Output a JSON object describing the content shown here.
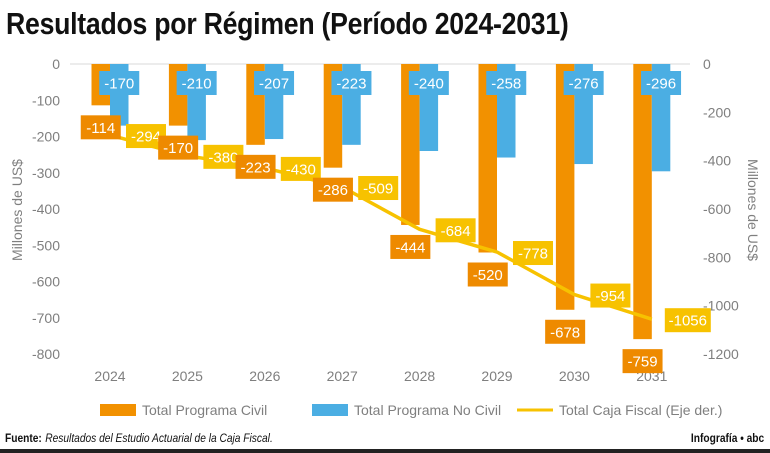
{
  "title": "Resultados por Régimen (Período 2024-2031)",
  "footer": {
    "source_label": "Fuente:",
    "source_text": "Resultados del Estudio Actuarial de la Caja Fiscal.",
    "credit": "Infografía • abc"
  },
  "colors": {
    "civil": "#F29100",
    "civil_label": "#EE8A00",
    "no_civil": "#4BAEE3",
    "caja": "#F7C200"
  },
  "chart_data": {
    "type": "bar+line",
    "categories": [
      "2024",
      "2025",
      "2026",
      "2027",
      "2028",
      "2029",
      "2030",
      "2031"
    ],
    "series": [
      {
        "name": "Total Programa Civil",
        "type": "bar",
        "axis": "left",
        "values": [
          -114,
          -170,
          -223,
          -286,
          -444,
          -520,
          -678,
          -759
        ]
      },
      {
        "name": "Total Programa No Civil",
        "type": "bar",
        "axis": "left",
        "values": [
          -170,
          -210,
          -207,
          -223,
          -240,
          -258,
          -276,
          -296
        ]
      },
      {
        "name": "Total Caja Fiscal (Eje der.)",
        "type": "line",
        "axis": "right",
        "values": [
          -294,
          -380,
          -430,
          -509,
          -684,
          -778,
          -954,
          -1056
        ]
      }
    ],
    "ylabel_left": "Millones de US$",
    "ylabel_right": "Millones de US$",
    "ylim_left": [
      -800,
      0
    ],
    "ylim_right": [
      -1200,
      0
    ],
    "yticks_left": [
      0,
      -100,
      -200,
      -300,
      -400,
      -500,
      -600,
      -700,
      -800
    ],
    "yticks_right": [
      0,
      -200,
      -400,
      -600,
      -800,
      -1000,
      -1200
    ],
    "legend_position": "bottom",
    "grid": false
  }
}
